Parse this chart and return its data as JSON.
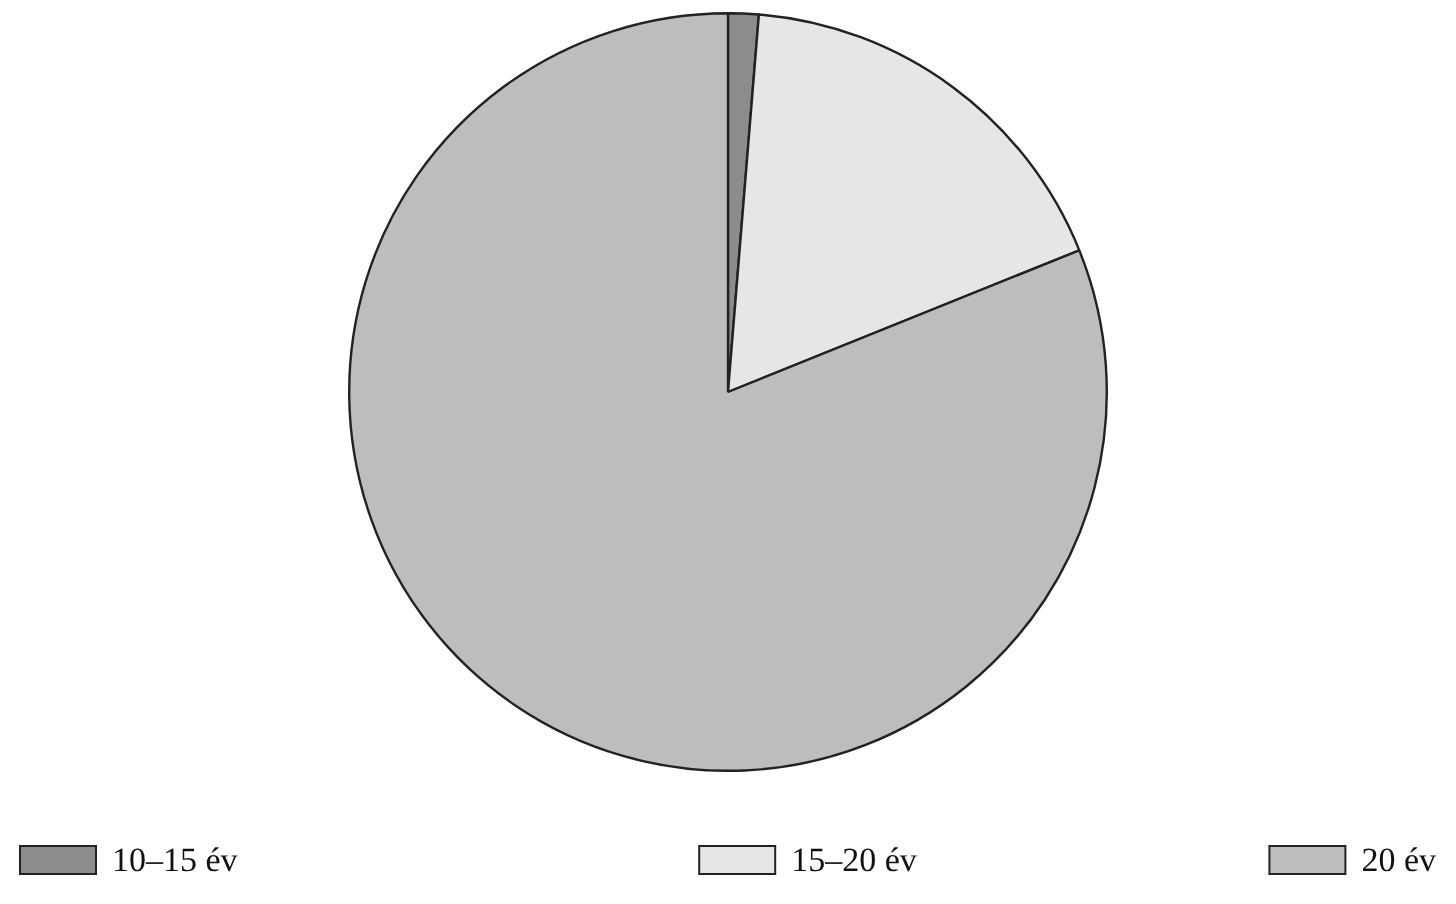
{
  "chart_data": {
    "type": "pie",
    "categories": [
      "10–15 év",
      "15–20 év",
      "20 év"
    ],
    "values": [
      1.3,
      17.6,
      81.1
    ],
    "colors": [
      "#8c8c8c",
      "#e6e6e6",
      "#bdbdbd"
    ],
    "legend": "bottom"
  }
}
